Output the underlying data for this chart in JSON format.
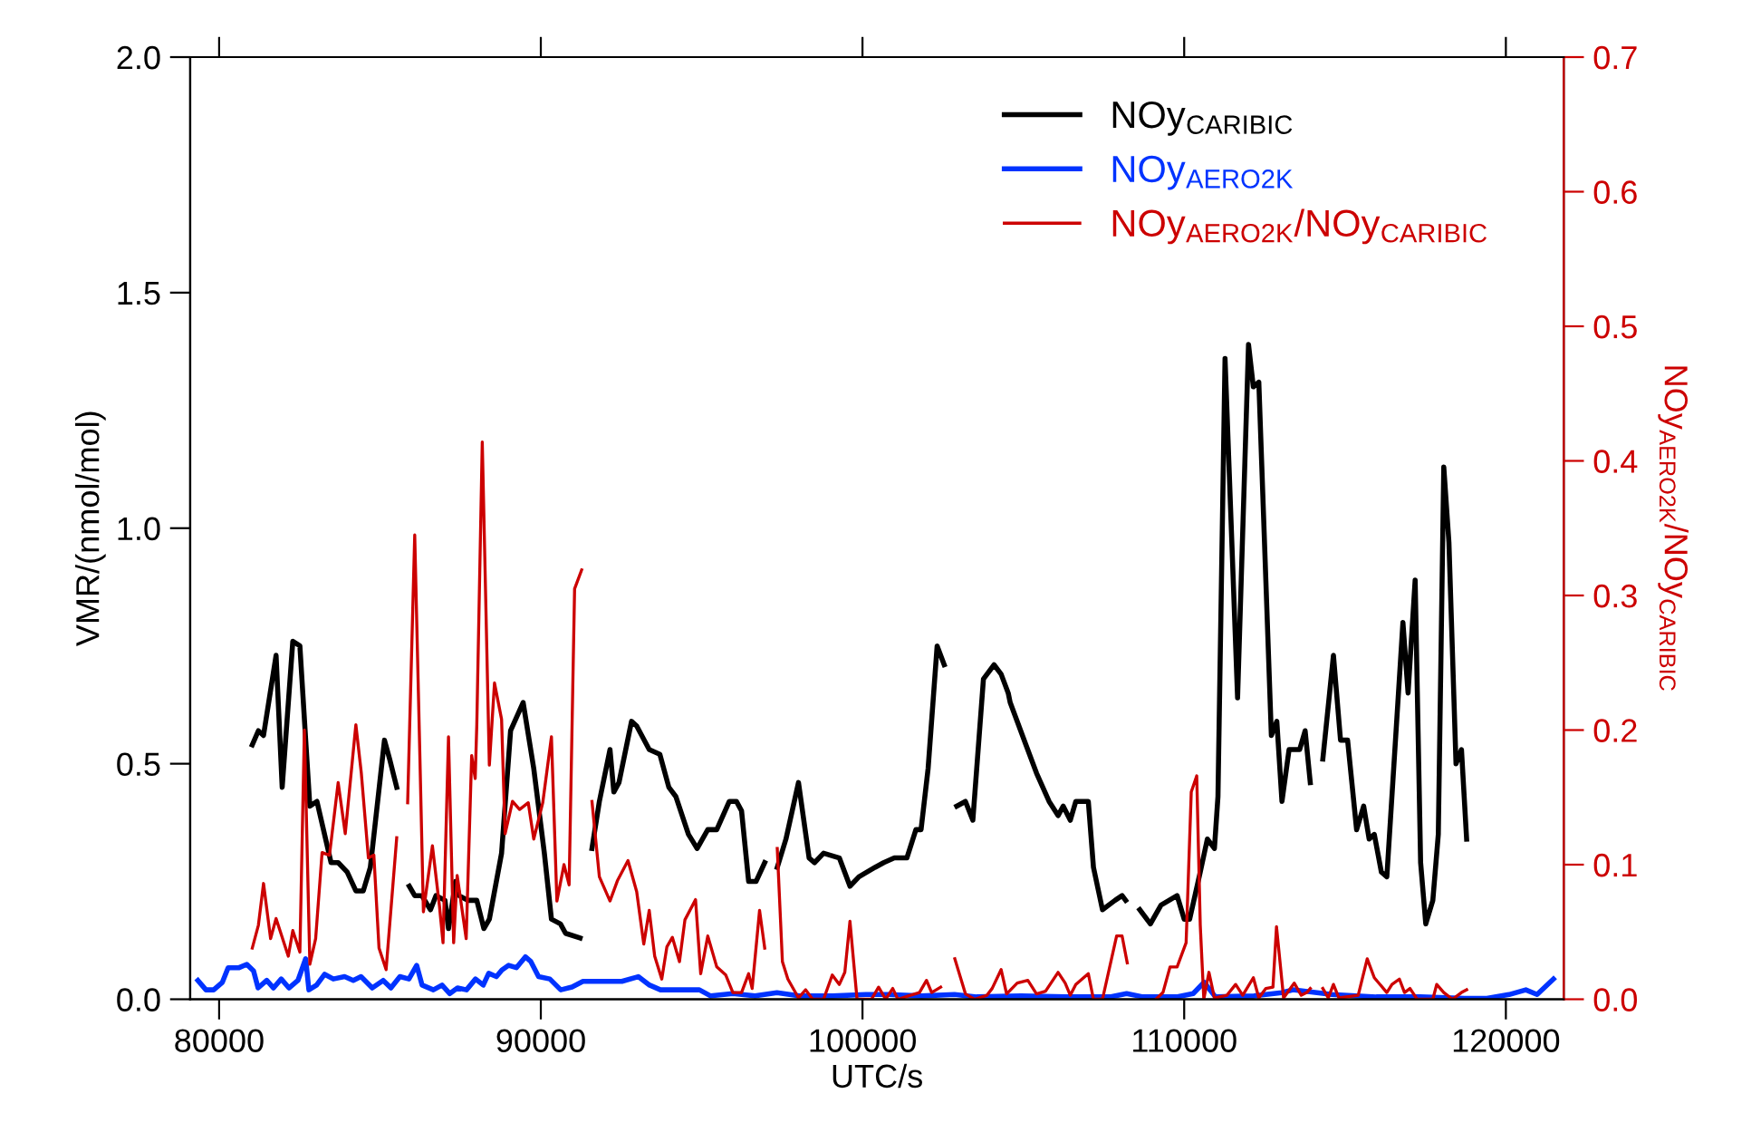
{
  "chart_data": {
    "type": "line",
    "xlabel": "UTC/s",
    "ylabel": "VMR/(nmol/mol)",
    "y2label": "NOy$_{AERO2K}$/NOy$_{CARIBIC}$",
    "legend": "top right",
    "grid": false,
    "xlim": [
      79100,
      121800
    ],
    "ylim": [
      0,
      2.0
    ],
    "y2lim": [
      0,
      0.7
    ],
    "xticks": [
      80000,
      90000,
      100000,
      110000,
      120000
    ],
    "yticks": [
      {
        "value": 0,
        "label": "0.0"
      },
      0.5,
      {
        "value": 1,
        "label": "1.0"
      },
      1.5,
      {
        "value": 2,
        "label": "2.0"
      }
    ],
    "y2ticks": [
      {
        "value": 0,
        "label": "0.0"
      },
      0.1,
      0.2,
      0.3,
      0.4,
      0.5,
      0.6,
      0.7
    ],
    "series": [
      {
        "name": "NOy$_{CARIBIC}$",
        "color": "#000000",
        "x": [
          81030,
          81220,
          81380,
          81770,
          81960,
          82290,
          82510,
          82700,
          82820,
          83040,
          83480,
          83700,
          83980,
          84250,
          84480,
          84700,
          85140,
          85300,
          85520,
          85700,
          85910,
          86080,
          86300,
          86570,
          86740,
          87020,
          87130,
          87350,
          87460,
          87730,
          88010,
          88230,
          88400,
          88780,
          89060,
          89450,
          89780,
          90110,
          90330,
          90610,
          90770,
          91220,
          91400,
          91590,
          91820,
          92150,
          92270,
          92430,
          92820,
          92980,
          93370,
          93700,
          93980,
          94200,
          94590,
          94860,
          95190,
          95470,
          95860,
          96080,
          96240,
          96460,
          96690,
          96960,
          97150,
          97350,
          97620,
          98010,
          98340,
          98510,
          98790,
          99280,
          99610,
          99890,
          100390,
          100660,
          100990,
          101380,
          101660,
          101820,
          102040,
          102320,
          102540,
          102750,
          102930,
          103200,
          103430,
          103760,
          104090,
          104310,
          104530,
          104590,
          105080,
          105410,
          105800,
          106080,
          106240,
          106460,
          106630,
          107020,
          107180,
          107460,
          107850,
          108070,
          108180,
          108400,
          108620,
          108950,
          109280,
          109780,
          110000,
          110170,
          110500,
          110720,
          110940,
          111050,
          111270,
          111660,
          112000,
          112150,
          112320,
          112710,
          112880,
          113040,
          113260,
          113590,
          113760,
          113920,
          114100,
          114310,
          114640,
          114860,
          115080,
          115360,
          115580,
          115750,
          115910,
          116130,
          116300,
          116800,
          116960,
          117180,
          117350,
          117510,
          117730,
          117900,
          118070,
          118230,
          118450,
          118620,
          118780
        ],
        "values": [
          0.54,
          0.57,
          0.56,
          0.73,
          0.45,
          0.76,
          0.75,
          0.54,
          0.41,
          0.42,
          0.29,
          0.29,
          0.27,
          0.23,
          0.23,
          0.28,
          0.55,
          0.51,
          0.45,
          null,
          0.24,
          0.22,
          0.22,
          0.19,
          0.22,
          0.21,
          0.15,
          0.25,
          0.22,
          0.21,
          0.21,
          0.15,
          0.17,
          0.31,
          0.57,
          0.63,
          0.49,
          0.31,
          0.17,
          0.16,
          0.14,
          0.13,
          null,
          0.32,
          0.42,
          0.53,
          0.44,
          0.46,
          0.59,
          0.58,
          0.53,
          0.52,
          0.45,
          0.43,
          0.35,
          0.32,
          0.36,
          0.36,
          0.42,
          0.42,
          0.4,
          0.25,
          0.25,
          0.29,
          null,
          0.28,
          0.34,
          0.46,
          0.3,
          0.29,
          0.31,
          0.3,
          0.24,
          0.26,
          0.28,
          0.29,
          0.3,
          0.3,
          0.36,
          0.36,
          0.49,
          0.75,
          0.71,
          null,
          0.41,
          0.42,
          0.38,
          0.68,
          0.71,
          0.69,
          0.65,
          0.63,
          0.54,
          0.48,
          0.42,
          0.39,
          0.41,
          0.38,
          0.42,
          0.42,
          0.28,
          0.19,
          0.21,
          0.22,
          0.21,
          null,
          0.19,
          0.16,
          0.2,
          0.22,
          0.17,
          0.17,
          0.27,
          0.34,
          0.32,
          0.43,
          1.36,
          0.64,
          1.39,
          1.3,
          1.31,
          0.56,
          0.59,
          0.42,
          0.53,
          0.53,
          0.57,
          0.46,
          null,
          0.51,
          0.73,
          0.55,
          0.55,
          0.36,
          0.41,
          0.34,
          0.35,
          0.27,
          0.26,
          0.8,
          0.65,
          0.89,
          0.29,
          0.16,
          0.21,
          0.35,
          1.13,
          0.97,
          0.5,
          0.53,
          0.34
        ]
      },
      {
        "name": "NOy$_{AERO2K}$",
        "color": "#0033ff",
        "x": [
          79340,
          79590,
          79830,
          80100,
          80280,
          80620,
          80860,
          81070,
          81210,
          81480,
          81690,
          81930,
          82170,
          82450,
          82690,
          82790,
          83030,
          83280,
          83550,
          83900,
          84170,
          84410,
          84760,
          85100,
          85340,
          85620,
          85900,
          86140,
          86310,
          86660,
          86930,
          87170,
          87410,
          87690,
          87970,
          88210,
          88380,
          88620,
          88790,
          89000,
          89240,
          89520,
          89690,
          89930,
          90280,
          90620,
          90970,
          91310,
          91830,
          92520,
          93030,
          93380,
          93720,
          94240,
          94930,
          95280,
          95970,
          96660,
          97340,
          98030,
          99070,
          100100,
          100790,
          101830,
          102860,
          103550,
          104930,
          106310,
          107690,
          108210,
          108720,
          109760,
          110280,
          110620,
          110970,
          112170,
          113030,
          113380,
          114590,
          115970,
          117340,
          118720,
          119410,
          120100,
          120620,
          120970,
          121480
        ],
        "values": [
          0.04,
          0.02,
          0.02,
          0.036,
          0.067,
          0.067,
          0.074,
          0.06,
          0.024,
          0.04,
          0.024,
          0.043,
          0.024,
          0.04,
          0.086,
          0.02,
          0.03,
          0.053,
          0.043,
          0.048,
          0.04,
          0.048,
          0.024,
          0.04,
          0.024,
          0.048,
          0.043,
          0.072,
          0.03,
          0.02,
          0.03,
          0.012,
          0.024,
          0.02,
          0.043,
          0.03,
          0.055,
          0.048,
          0.062,
          0.072,
          0.067,
          0.09,
          0.08,
          0.048,
          0.043,
          0.02,
          0.026,
          0.038,
          0.038,
          0.038,
          0.048,
          0.03,
          0.02,
          0.02,
          0.02,
          0.007,
          0.012,
          0.007,
          0.014,
          0.007,
          0.007,
          0.01,
          0.01,
          0.007,
          0.01,
          0.005,
          0.007,
          0.005,
          0.005,
          0.012,
          0.005,
          0.005,
          0.012,
          0.036,
          0.005,
          0.007,
          0.014,
          0.02,
          0.01,
          0.005,
          0.005,
          0.002,
          0.002,
          0.01,
          0.02,
          0.01,
          0.043
        ]
      },
      {
        "name": "NOy$_{AERO2K}$/NOy$_{CARIBIC}$",
        "color": "#cc0000",
        "axis": "y2",
        "x": [
          81030,
          81220,
          81380,
          81600,
          81770,
          82150,
          82290,
          82510,
          82650,
          82820,
          83000,
          83200,
          83430,
          83700,
          83920,
          84250,
          84420,
          84640,
          84810,
          84970,
          85190,
          85520,
          85700,
          85860,
          86080,
          86240,
          86350,
          86630,
          86850,
          86960,
          87130,
          87290,
          87400,
          87680,
          87850,
          87960,
          88010,
          88180,
          88400,
          88560,
          88780,
          88890,
          89120,
          89340,
          89610,
          89780,
          90060,
          90330,
          90500,
          90720,
          90880,
          91050,
          91270,
          91400,
          91590,
          91820,
          92150,
          92380,
          92710,
          92980,
          93200,
          93370,
          93540,
          93760,
          93920,
          94090,
          94310,
          94480,
          94810,
          94970,
          95190,
          95470,
          95750,
          95970,
          96240,
          96460,
          96570,
          96800,
          96960,
          97150,
          97350,
          97510,
          97680,
          98010,
          98230,
          98450,
          98790,
          99060,
          99280,
          99450,
          99610,
          99830,
          100280,
          100500,
          100720,
          100940,
          101100,
          101490,
          101770,
          101990,
          102150,
          102430,
          102650,
          102870,
          103200,
          103480,
          103870,
          104030,
          104310,
          104480,
          104810,
          105140,
          105410,
          105690,
          106080,
          106300,
          106460,
          106630,
          107020,
          107180,
          107460,
          107900,
          108070,
          108230,
          108400,
          108560,
          109120,
          109340,
          109560,
          109780,
          110060,
          110220,
          110390,
          110500,
          110610,
          110770,
          110940,
          111330,
          111600,
          111820,
          112150,
          112320,
          112540,
          112760,
          112870,
          113090,
          113420,
          113640,
          113810,
          113920,
          114100,
          114310,
          114480,
          114640,
          114810,
          115410,
          115690,
          115910,
          116300,
          116460,
          116690,
          116850,
          117020,
          117240,
          117730,
          117850,
          118070,
          118340,
          118620,
          118780
        ],
        "values": [
          0.038,
          0.055,
          0.086,
          0.045,
          0.06,
          0.032,
          0.051,
          0.035,
          0.2,
          0.026,
          0.045,
          0.109,
          0.107,
          0.161,
          0.123,
          0.204,
          0.168,
          0.105,
          0.107,
          0.038,
          0.022,
          0.12,
          null,
          0.146,
          0.345,
          0.181,
          0.065,
          0.114,
          0.069,
          0.042,
          0.195,
          0.042,
          0.092,
          0.045,
          0.181,
          0.164,
          0.204,
          0.414,
          0.174,
          0.235,
          0.208,
          0.123,
          0.147,
          0.141,
          0.146,
          0.119,
          0.146,
          0.195,
          0.073,
          0.1,
          0.085,
          0.305,
          0.319,
          null,
          0.147,
          0.091,
          0.073,
          0.088,
          0.103,
          0.08,
          0.041,
          0.066,
          0.032,
          0.015,
          0.039,
          0.046,
          0.028,
          0.059,
          0.074,
          0.019,
          0.047,
          0.024,
          0.018,
          0.005,
          0.005,
          0.019,
          0.008,
          0.066,
          0.038,
          null,
          0.112,
          0.028,
          0.015,
          0.001,
          0.007,
          0,
          0,
          0.018,
          0.011,
          0.02,
          0.058,
          0,
          0,
          0.009,
          0,
          0.008,
          0,
          0.003,
          0.005,
          0.014,
          0.005,
          0.009,
          null,
          0.03,
          0.004,
          0,
          0.003,
          0.008,
          0.022,
          0.004,
          0.012,
          0.014,
          0.004,
          0.006,
          0.02,
          0.012,
          0.003,
          0.011,
          0.019,
          0,
          0,
          0.047,
          0.047,
          0.027,
          null,
          null,
          0,
          0.005,
          0.024,
          0.024,
          0.042,
          0.154,
          0.166,
          0.055,
          0,
          0.02,
          0.001,
          0.003,
          0.011,
          0.003,
          0.016,
          0.001,
          0.008,
          0.009,
          0.054,
          0.001,
          0.012,
          0.003,
          0.005,
          0.008,
          null,
          0.008,
          0.001,
          0.011,
          0.001,
          0.003,
          0.03,
          0.016,
          0.005,
          0.011,
          0.015,
          0.005,
          0.008,
          0,
          0,
          0.011,
          0.005,
          0,
          0.005,
          0.007
        ]
      }
    ]
  }
}
